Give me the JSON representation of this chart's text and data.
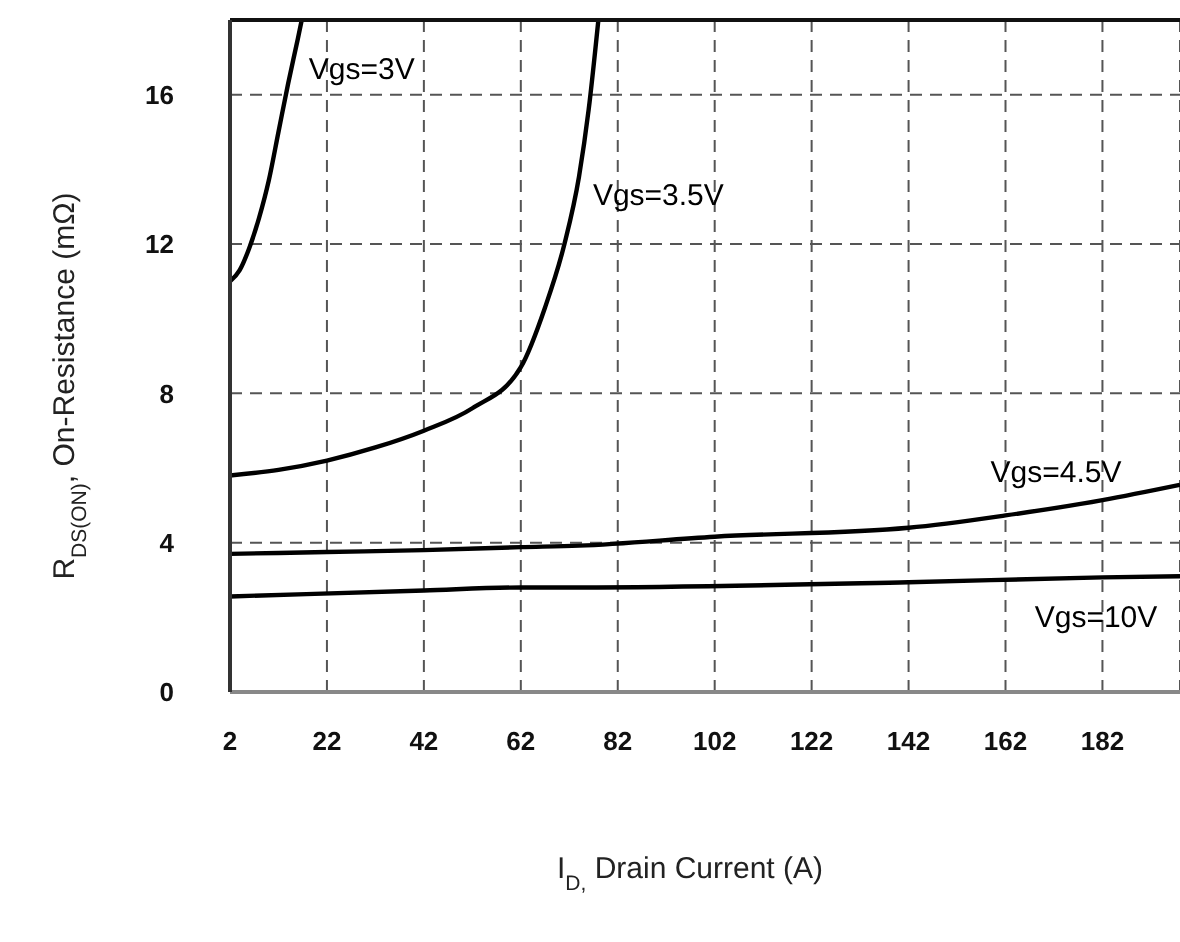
{
  "chart_data": {
    "type": "line",
    "xlabel": "I$_{D,}$ Drain Current (A)",
    "ylabel": "R$_{DS(ON)}$,  On-Resistance (mΩ)",
    "xlim": [
      2,
      198
    ],
    "xticks": [
      2,
      22,
      42,
      62,
      82,
      102,
      122,
      142,
      162,
      182
    ],
    "ylim": [
      0,
      18
    ],
    "yticks": [
      0,
      4,
      8,
      12,
      16
    ],
    "grid": true,
    "marker": "none",
    "line_style": "solid",
    "series": [
      {
        "name": "Vgs=3V",
        "color": "#000000",
        "x": [
          2,
          4,
          6,
          8,
          10,
          12,
          14,
          16,
          16.8
        ],
        "values": [
          11,
          11.3,
          11.9,
          12.7,
          13.7,
          15,
          16.3,
          17.5,
          18
        ]
      },
      {
        "name": "Vgs=3.5V",
        "color": "#000000",
        "x": [
          2,
          12,
          22,
          32,
          42,
          52,
          62,
          67,
          71,
          74,
          76,
          78
        ],
        "values": [
          5.8,
          5.95,
          6.2,
          6.55,
          7,
          7.6,
          8.7,
          10.3,
          12,
          13.8,
          15.6,
          18
        ]
      },
      {
        "name": "Vgs=4.5V",
        "color": "#000000",
        "x": [
          2,
          22,
          42,
          62,
          74,
          102,
          142,
          162,
          182,
          198
        ],
        "values": [
          3.7,
          3.75,
          3.8,
          3.88,
          3.92,
          4.16,
          4.4,
          4.73,
          5.14,
          5.55
        ]
      },
      {
        "name": "Vgs=10V",
        "color": "#000000",
        "x": [
          2,
          42,
          62,
          74,
          142,
          182,
          198
        ],
        "values": [
          2.56,
          2.72,
          2.8,
          2.8,
          2.94,
          3.07,
          3.1
        ]
      }
    ]
  }
}
